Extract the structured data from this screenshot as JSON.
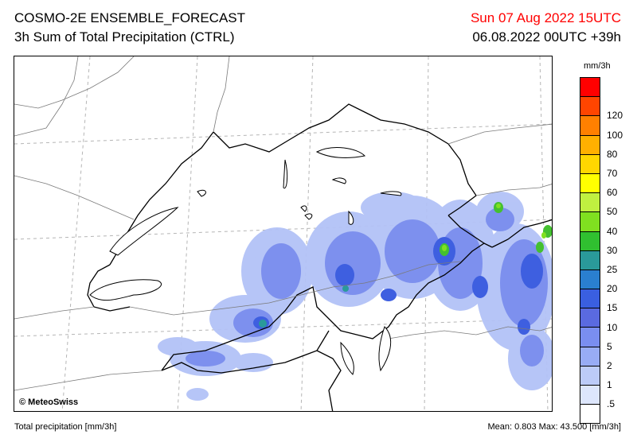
{
  "header": {
    "title": "COSMO-2E ENSEMBLE_FORECAST",
    "subtitle": "3h Sum of Total Precipitation (CTRL)",
    "valid_time": "Sun 07 Aug 2022 15UTC",
    "run_info": "06.08.2022 00UTC +39h",
    "valid_time_color": "#ff0000"
  },
  "map": {
    "credit": "© MeteoSwiss",
    "credit_icon": "copyright-icon"
  },
  "legend": {
    "unit": "mm/3h",
    "classes": [
      {
        "label": "",
        "color": "#ff0000"
      },
      {
        "label": "120",
        "color": "#ff4500"
      },
      {
        "label": "100",
        "color": "#ff8000"
      },
      {
        "label": "80",
        "color": "#ffb000"
      },
      {
        "label": "70",
        "color": "#ffd700"
      },
      {
        "label": "60",
        "color": "#ffff00"
      },
      {
        "label": "50",
        "color": "#c0f040"
      },
      {
        "label": "40",
        "color": "#80e020"
      },
      {
        "label": "30",
        "color": "#30c030"
      },
      {
        "label": "25",
        "color": "#2a9a9a"
      },
      {
        "label": "20",
        "color": "#2a7fd0"
      },
      {
        "label": "15",
        "color": "#3a5fe0"
      },
      {
        "label": "10",
        "color": "#5a6ae0"
      },
      {
        "label": "5",
        "color": "#7a8ef0"
      },
      {
        "label": "2",
        "color": "#98acf5"
      },
      {
        "label": "1",
        "color": "#bccbf8"
      },
      {
        "label": ".5",
        "color": "#dde6fc"
      },
      {
        "label": "",
        "color": "#ffffff"
      }
    ]
  },
  "footer": {
    "left": "Total precipitation [mm/3h]",
    "right": "Mean:   0.803 Max:  43.500 [mm/3h]"
  }
}
